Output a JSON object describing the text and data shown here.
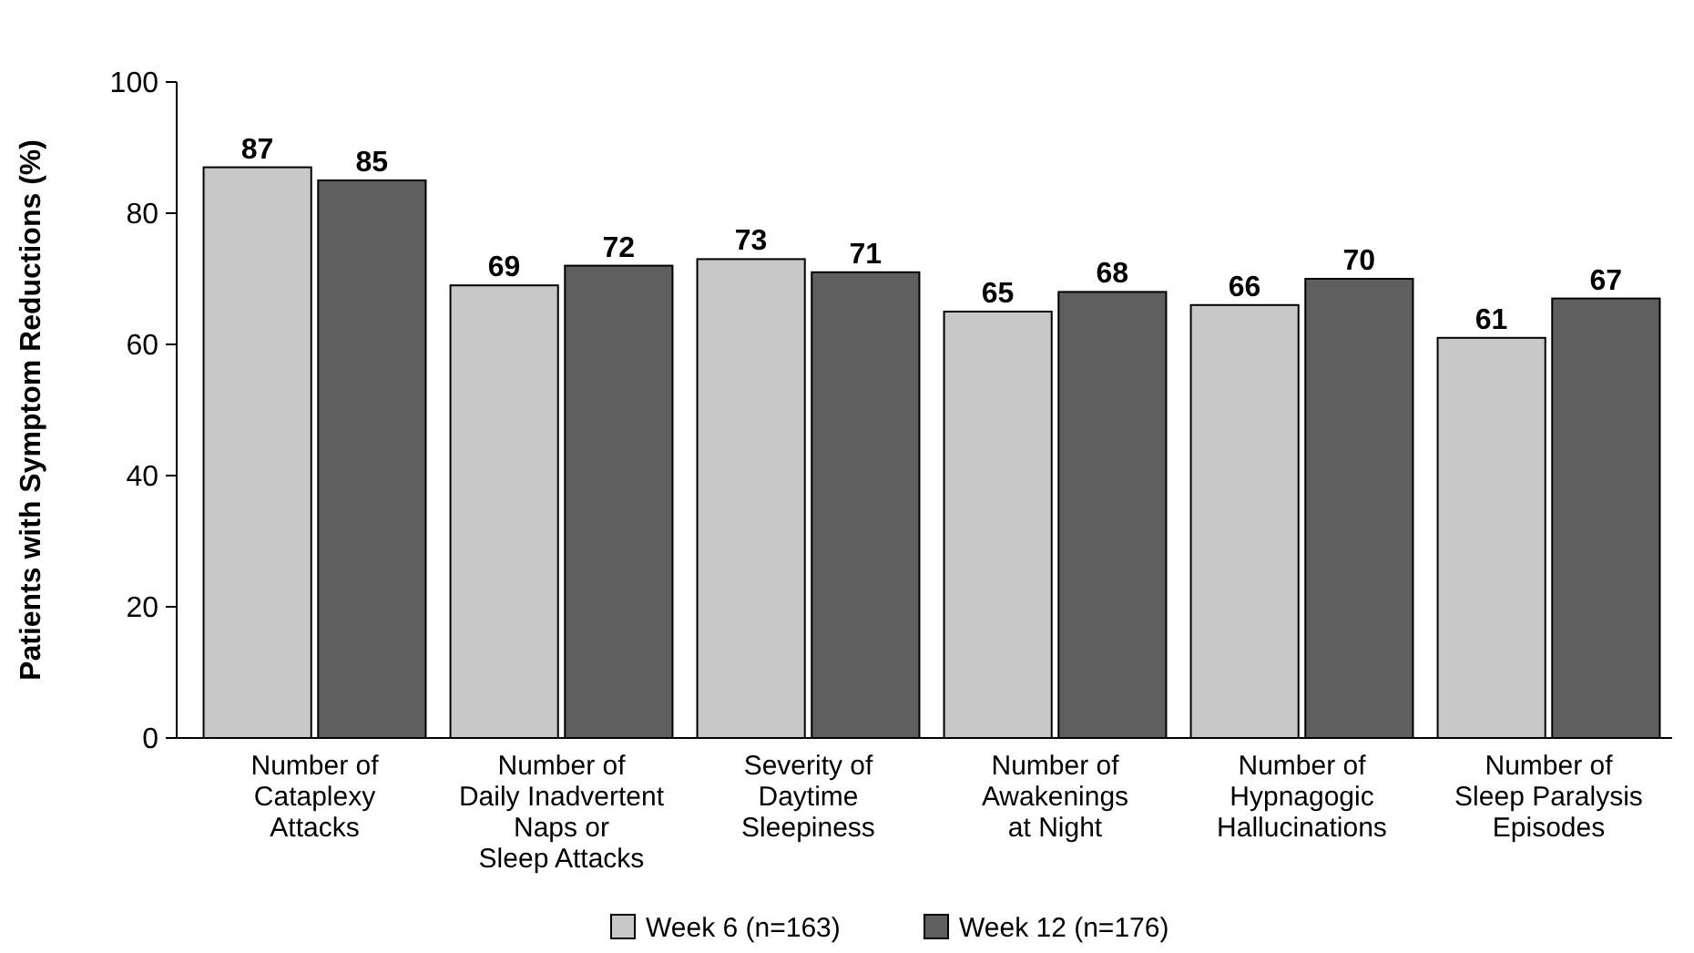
{
  "chart_data": {
    "type": "bar",
    "ylabel": "Patients with Symptom Reductions (%)",
    "categories": [
      "Number of\nCataplexy\nAttacks",
      "Number of\nDaily Inadvertent\nNaps or\nSleep Attacks",
      "Severity of\nDaytime\nSleepiness",
      "Number of\nAwakenings\nat Night",
      "Number of\nHypnagogic\nHallucinations",
      "Number of\nSleep Paralysis\nEpisodes"
    ],
    "series": [
      {
        "name": "Week 6 (n=163)",
        "color": "#c8c8c8",
        "values": [
          87,
          69,
          73,
          65,
          66,
          61
        ]
      },
      {
        "name": "Week 12 (n=176)",
        "color": "#5f5f5f",
        "values": [
          85,
          72,
          71,
          68,
          70,
          67
        ]
      }
    ],
    "ylim": [
      0,
      100
    ],
    "yticks": [
      0,
      20,
      40,
      60,
      80,
      100
    ],
    "data_labels": true,
    "legend": "bottom",
    "grid": false
  }
}
